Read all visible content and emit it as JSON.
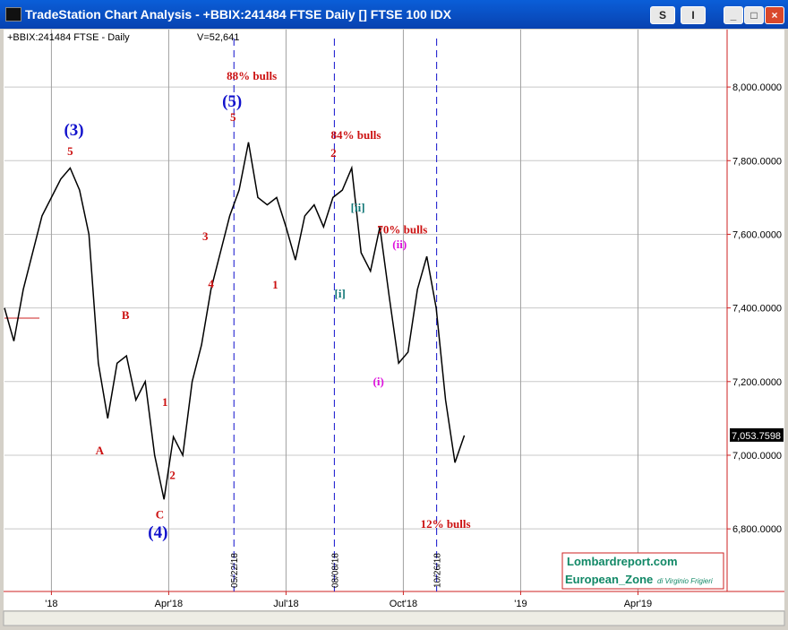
{
  "window": {
    "title": "TradeStation Chart Analysis - +BBIX:241484 FTSE Daily [] FTSE 100 IDX",
    "buttons": [
      "S",
      "I"
    ]
  },
  "chart_data": {
    "type": "line",
    "header": "+BBIX:241484 FTSE - Daily",
    "volume": "V=52,641",
    "x": [
      2017.9,
      2017.92,
      2017.94,
      2017.96,
      2017.98,
      2018.0,
      2018.02,
      2018.04,
      2018.06,
      2018.08,
      2018.1,
      2018.12,
      2018.14,
      2018.16,
      2018.18,
      2018.2,
      2018.22,
      2018.24,
      2018.26,
      2018.28,
      2018.3,
      2018.32,
      2018.34,
      2018.36,
      2018.38,
      2018.4,
      2018.42,
      2018.44,
      2018.46,
      2018.48,
      2018.5,
      2018.52,
      2018.54,
      2018.56,
      2018.58,
      2018.6,
      2018.62,
      2018.64,
      2018.66,
      2018.68,
      2018.7,
      2018.72,
      2018.74,
      2018.76,
      2018.78,
      2018.8,
      2018.82,
      2018.84,
      2018.86,
      2018.88
    ],
    "series": [
      {
        "name": "+BBIX:241484 FTSE",
        "color": "#000000",
        "values": [
          7400,
          7310,
          7450,
          7550,
          7650,
          7700,
          7750,
          7780,
          7720,
          7600,
          7250,
          7100,
          7250,
          7270,
          7150,
          7200,
          7000,
          6880,
          7050,
          7000,
          7200,
          7300,
          7450,
          7550,
          7650,
          7720,
          7850,
          7700,
          7680,
          7700,
          7620,
          7530,
          7650,
          7680,
          7620,
          7700,
          7720,
          7780,
          7550,
          7500,
          7620,
          7430,
          7250,
          7280,
          7450,
          7540,
          7400,
          7150,
          6980,
          7053.7598
        ]
      }
    ],
    "last_price": {
      "value": 7053.7598,
      "label": "7,053.7598"
    },
    "xlim": [
      2017.9,
      2019.44
    ],
    "xticks": [
      {
        "value": 2018.0,
        "label": "'18"
      },
      {
        "value": 2018.25,
        "label": "Apr'18"
      },
      {
        "value": 2018.5,
        "label": "Jul'18"
      },
      {
        "value": 2018.75,
        "label": "Oct'18"
      },
      {
        "value": 2019.0,
        "label": "'19"
      },
      {
        "value": 2019.25,
        "label": "Apr'19"
      }
    ],
    "ylim": [
      6630,
      8156
    ],
    "yticks": [
      {
        "value": 6800,
        "label": "6,800.0000"
      },
      {
        "value": 7000,
        "label": "7,000.0000"
      },
      {
        "value": 7200,
        "label": "7,200.0000"
      },
      {
        "value": 7400,
        "label": "7,400.0000"
      },
      {
        "value": 7600,
        "label": "7,600.0000"
      },
      {
        "value": 7800,
        "label": "7,800.0000"
      },
      {
        "value": 8000,
        "label": "8,000.0000"
      }
    ],
    "grid": true,
    "vlines": [
      {
        "x": 2018.389,
        "label": "05/22/18"
      },
      {
        "x": 2018.603,
        "label": "08/08/18"
      },
      {
        "x": 2018.821,
        "label": "10/26/18"
      }
    ],
    "annotations": [
      {
        "text": "88% bulls",
        "x": 2018.427,
        "y": 8032,
        "color": "#cc1111"
      },
      {
        "text": "(5)",
        "x": 2018.385,
        "y": 7959,
        "color": "#1111cc"
      },
      {
        "text": "5",
        "x": 2018.387,
        "y": 7920,
        "color": "#cc1111"
      },
      {
        "text": "(3)",
        "x": 2018.048,
        "y": 7881,
        "color": "#1111cc"
      },
      {
        "text": "5",
        "x": 2018.04,
        "y": 7827,
        "color": "#cc1111"
      },
      {
        "text": "84% bulls",
        "x": 2018.649,
        "y": 7871,
        "color": "#cc1111"
      },
      {
        "text": "2",
        "x": 2018.601,
        "y": 7822,
        "color": "#cc1111"
      },
      {
        "text": "[ii]",
        "x": 2018.653,
        "y": 7674,
        "color": "#117777"
      },
      {
        "text": "70% bulls",
        "x": 2018.748,
        "y": 7615,
        "color": "#cc1111"
      },
      {
        "text": "(ii)",
        "x": 2018.742,
        "y": 7574,
        "color": "#dd11dd"
      },
      {
        "text": "3",
        "x": 2018.328,
        "y": 7596,
        "color": "#cc1111"
      },
      {
        "text": "4",
        "x": 2018.34,
        "y": 7467,
        "color": "#cc1111"
      },
      {
        "text": "1",
        "x": 2018.477,
        "y": 7465,
        "color": "#cc1111"
      },
      {
        "text": "[i]",
        "x": 2018.615,
        "y": 7440,
        "color": "#117777"
      },
      {
        "text": "B",
        "x": 2018.158,
        "y": 7382,
        "color": "#cc1111"
      },
      {
        "text": "(i)",
        "x": 2018.697,
        "y": 7202,
        "color": "#dd11dd"
      },
      {
        "text": "1",
        "x": 2018.242,
        "y": 7146,
        "color": "#cc1111"
      },
      {
        "text": "A",
        "x": 2018.103,
        "y": 7015,
        "color": "#cc1111"
      },
      {
        "text": "2",
        "x": 2018.258,
        "y": 6948,
        "color": "#cc1111"
      },
      {
        "text": "C",
        "x": 2018.231,
        "y": 6841,
        "color": "#cc1111"
      },
      {
        "text": "(4)",
        "x": 2018.227,
        "y": 6788,
        "color": "#1111cc"
      },
      {
        "text": "12% bulls",
        "x": 2018.84,
        "y": 6815,
        "color": "#cc1111"
      }
    ]
  },
  "logo": {
    "site": "Lombardreport.com",
    "zone": "European_Zone",
    "author": "di Virginio Frigieri"
  }
}
